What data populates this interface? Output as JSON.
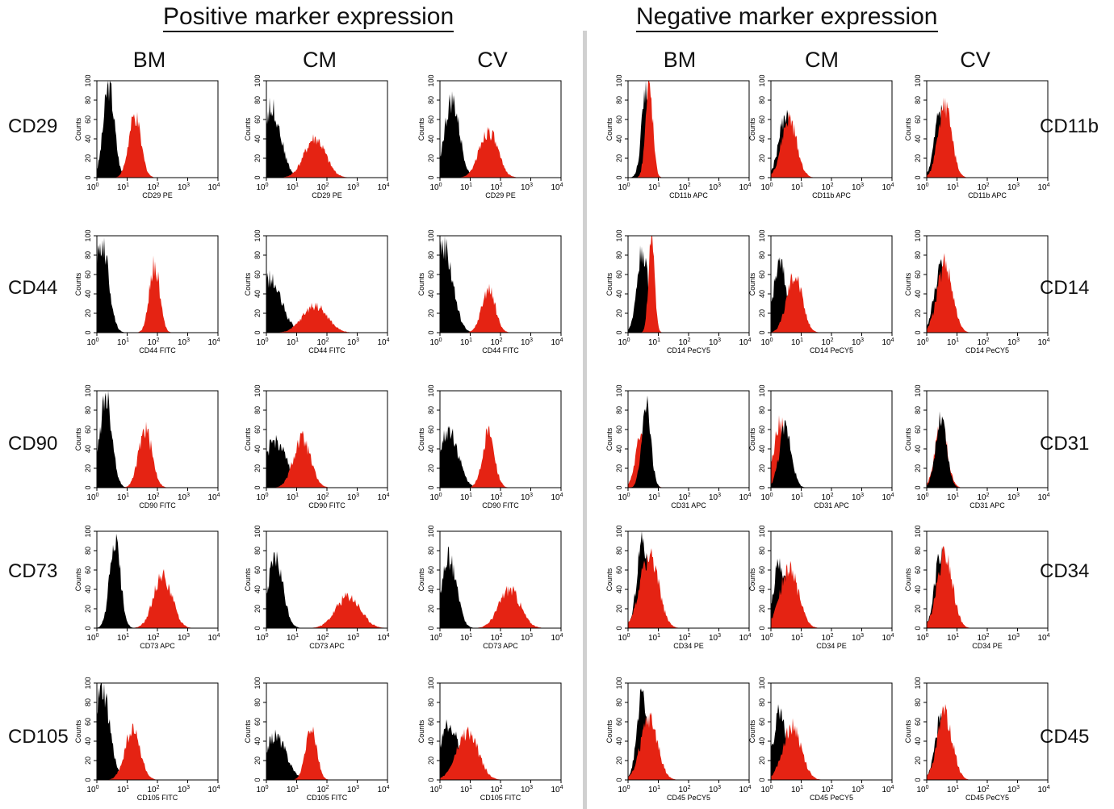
{
  "title_positive": "Positive marker expression",
  "title_negative": "Negative marker expression",
  "columns_positive": [
    "BM",
    "CM",
    "CV"
  ],
  "columns_negative": [
    "BM",
    "CM",
    "CV"
  ],
  "rows_positive": [
    "CD29",
    "CD44",
    "CD90",
    "CD73",
    "CD105"
  ],
  "rows_negative": [
    "CD11b",
    "CD14",
    "CD31",
    "CD34",
    "CD45"
  ],
  "colors": {
    "control": "#000000",
    "marker": "#e52313",
    "divider": "#d0d0d0"
  },
  "chart_data": [
    {
      "type": "area",
      "id": "pos-CD29-BM",
      "xlabel": "CD29 PE",
      "ylabel": "Counts",
      "xscale": "log",
      "xlim": [
        1,
        10000
      ],
      "ylim": [
        0,
        100
      ],
      "series": [
        {
          "role": "control",
          "peak_x": 2.5,
          "peak_y": 95,
          "width": 0.18
        },
        {
          "role": "marker",
          "peak_x": 18,
          "peak_y": 62,
          "width": 0.2
        }
      ]
    },
    {
      "type": "area",
      "id": "pos-CD29-CM",
      "xlabel": "CD29 PE",
      "ylabel": "Counts",
      "xscale": "log",
      "xlim": [
        1,
        10000
      ],
      "ylim": [
        0,
        100
      ],
      "series": [
        {
          "role": "control",
          "peak_x": 1.5,
          "peak_y": 72,
          "width": 0.3
        },
        {
          "role": "marker",
          "peak_x": 40,
          "peak_y": 40,
          "width": 0.35
        }
      ]
    },
    {
      "type": "area",
      "id": "pos-CD29-CV",
      "xlabel": "CD29 PE",
      "ylabel": "Counts",
      "xscale": "log",
      "xlim": [
        1,
        10000
      ],
      "ylim": [
        0,
        100
      ],
      "series": [
        {
          "role": "control",
          "peak_x": 2.5,
          "peak_y": 78,
          "width": 0.25
        },
        {
          "role": "marker",
          "peak_x": 40,
          "peak_y": 48,
          "width": 0.3
        }
      ]
    },
    {
      "type": "area",
      "id": "pos-CD44-BM",
      "xlabel": "CD44 FITC",
      "ylabel": "Counts",
      "xscale": "log",
      "xlim": [
        1,
        10000
      ],
      "ylim": [
        0,
        100
      ],
      "series": [
        {
          "role": "control",
          "peak_x": 1.5,
          "peak_y": 92,
          "width": 0.22
        },
        {
          "role": "marker",
          "peak_x": 80,
          "peak_y": 70,
          "width": 0.17
        }
      ]
    },
    {
      "type": "area",
      "id": "pos-CD44-CM",
      "xlabel": "CD44 FITC",
      "ylabel": "Counts",
      "xscale": "log",
      "xlim": [
        1,
        10000
      ],
      "ylim": [
        0,
        100
      ],
      "series": [
        {
          "role": "control",
          "peak_x": 1.2,
          "peak_y": 55,
          "width": 0.4
        },
        {
          "role": "marker",
          "peak_x": 40,
          "peak_y": 28,
          "width": 0.4
        }
      ]
    },
    {
      "type": "area",
      "id": "pos-CD44-CV",
      "xlabel": "CD44 FITC",
      "ylabel": "Counts",
      "xscale": "log",
      "xlim": [
        1,
        10000
      ],
      "ylim": [
        0,
        100
      ],
      "series": [
        {
          "role": "control",
          "peak_x": 1.3,
          "peak_y": 90,
          "width": 0.3
        },
        {
          "role": "marker",
          "peak_x": 40,
          "peak_y": 45,
          "width": 0.22
        }
      ]
    },
    {
      "type": "area",
      "id": "pos-CD90-BM",
      "xlabel": "CD90 FITC",
      "ylabel": "Counts",
      "xscale": "log",
      "xlim": [
        1,
        10000
      ],
      "ylim": [
        0,
        100
      ],
      "series": [
        {
          "role": "control",
          "peak_x": 2,
          "peak_y": 95,
          "width": 0.2
        },
        {
          "role": "marker",
          "peak_x": 40,
          "peak_y": 60,
          "width": 0.22
        }
      ]
    },
    {
      "type": "area",
      "id": "pos-CD90-CM",
      "xlabel": "CD90 FITC",
      "ylabel": "Counts",
      "xscale": "log",
      "xlim": [
        1,
        10000
      ],
      "ylim": [
        0,
        100
      ],
      "series": [
        {
          "role": "control",
          "peak_x": 2,
          "peak_y": 48,
          "width": 0.35
        },
        {
          "role": "marker",
          "peak_x": 15,
          "peak_y": 50,
          "width": 0.28
        }
      ]
    },
    {
      "type": "area",
      "id": "pos-CD90-CV",
      "xlabel": "CD90 FITC",
      "ylabel": "Counts",
      "xscale": "log",
      "xlim": [
        1,
        10000
      ],
      "ylim": [
        0,
        100
      ],
      "series": [
        {
          "role": "control",
          "peak_x": 2,
          "peak_y": 60,
          "width": 0.3
        },
        {
          "role": "marker",
          "peak_x": 40,
          "peak_y": 55,
          "width": 0.2
        }
      ]
    },
    {
      "type": "area",
      "id": "pos-CD73-BM",
      "xlabel": "CD73 APC",
      "ylabel": "Counts",
      "xscale": "log",
      "xlim": [
        1,
        10000
      ],
      "ylim": [
        0,
        100
      ],
      "series": [
        {
          "role": "control",
          "peak_x": 4,
          "peak_y": 88,
          "width": 0.18
        },
        {
          "role": "marker",
          "peak_x": 150,
          "peak_y": 55,
          "width": 0.3
        }
      ]
    },
    {
      "type": "area",
      "id": "pos-CD73-CM",
      "xlabel": "CD73 APC",
      "ylabel": "Counts",
      "xscale": "log",
      "xlim": [
        1,
        10000
      ],
      "ylim": [
        0,
        100
      ],
      "series": [
        {
          "role": "control",
          "peak_x": 2,
          "peak_y": 70,
          "width": 0.25
        },
        {
          "role": "marker",
          "peak_x": 500,
          "peak_y": 33,
          "width": 0.4
        }
      ]
    },
    {
      "type": "area",
      "id": "pos-CD73-CV",
      "xlabel": "CD73 APC",
      "ylabel": "Counts",
      "xscale": "log",
      "xlim": [
        1,
        10000
      ],
      "ylim": [
        0,
        100
      ],
      "series": [
        {
          "role": "control",
          "peak_x": 2,
          "peak_y": 72,
          "width": 0.25
        },
        {
          "role": "marker",
          "peak_x": 200,
          "peak_y": 40,
          "width": 0.35
        }
      ]
    },
    {
      "type": "area",
      "id": "pos-CD105-BM",
      "xlabel": "CD105 FITC",
      "ylabel": "Counts",
      "xscale": "log",
      "xlim": [
        1,
        10000
      ],
      "ylim": [
        0,
        100
      ],
      "series": [
        {
          "role": "control",
          "peak_x": 1.5,
          "peak_y": 95,
          "width": 0.25
        },
        {
          "role": "marker",
          "peak_x": 15,
          "peak_y": 52,
          "width": 0.25
        }
      ]
    },
    {
      "type": "area",
      "id": "pos-CD105-CM",
      "xlabel": "CD105 FITC",
      "ylabel": "Counts",
      "xscale": "log",
      "xlim": [
        1,
        10000
      ],
      "ylim": [
        0,
        100
      ],
      "series": [
        {
          "role": "control",
          "peak_x": 2,
          "peak_y": 45,
          "width": 0.35
        },
        {
          "role": "marker",
          "peak_x": 30,
          "peak_y": 55,
          "width": 0.18
        }
      ]
    },
    {
      "type": "area",
      "id": "pos-CD105-CV",
      "xlabel": "CD105 FITC",
      "ylabel": "Counts",
      "xscale": "log",
      "xlim": [
        1,
        10000
      ],
      "ylim": [
        0,
        100
      ],
      "series": [
        {
          "role": "control",
          "peak_x": 2,
          "peak_y": 55,
          "width": 0.35
        },
        {
          "role": "marker",
          "peak_x": 8,
          "peak_y": 50,
          "width": 0.35
        }
      ]
    },
    {
      "type": "area",
      "id": "neg-CD11b-BM",
      "xlabel": "CD11b APC",
      "ylabel": "Counts",
      "xscale": "log",
      "xlim": [
        1,
        10000
      ],
      "ylim": [
        0,
        100
      ],
      "series": [
        {
          "role": "control",
          "peak_x": 4,
          "peak_y": 88,
          "width": 0.15
        },
        {
          "role": "marker",
          "peak_x": 5,
          "peak_y": 95,
          "width": 0.12
        }
      ]
    },
    {
      "type": "area",
      "id": "neg-CD11b-CM",
      "xlabel": "CD11b APC",
      "ylabel": "Counts",
      "xscale": "log",
      "xlim": [
        1,
        10000
      ],
      "ylim": [
        0,
        100
      ],
      "series": [
        {
          "role": "control",
          "peak_x": 3,
          "peak_y": 62,
          "width": 0.22
        },
        {
          "role": "marker",
          "peak_x": 4,
          "peak_y": 60,
          "width": 0.25
        }
      ]
    },
    {
      "type": "area",
      "id": "neg-CD11b-CV",
      "xlabel": "CD11b APC",
      "ylabel": "Counts",
      "xscale": "log",
      "xlim": [
        1,
        10000
      ],
      "ylim": [
        0,
        100
      ],
      "series": [
        {
          "role": "control",
          "peak_x": 3,
          "peak_y": 72,
          "width": 0.2
        },
        {
          "role": "marker",
          "peak_x": 4,
          "peak_y": 75,
          "width": 0.22
        }
      ]
    },
    {
      "type": "area",
      "id": "neg-CD14-BM",
      "xlabel": "CD14 PeCY5",
      "ylabel": "Counts",
      "xscale": "log",
      "xlim": [
        1,
        10000
      ],
      "ylim": [
        0,
        100
      ],
      "series": [
        {
          "role": "control",
          "peak_x": 3,
          "peak_y": 85,
          "width": 0.18
        },
        {
          "role": "marker",
          "peak_x": 6,
          "peak_y": 95,
          "width": 0.1
        }
      ]
    },
    {
      "type": "area",
      "id": "neg-CD14-CM",
      "xlabel": "CD14 PeCY5",
      "ylabel": "Counts",
      "xscale": "log",
      "xlim": [
        1,
        10000
      ],
      "ylim": [
        0,
        100
      ],
      "series": [
        {
          "role": "control",
          "peak_x": 2,
          "peak_y": 70,
          "width": 0.22
        },
        {
          "role": "marker",
          "peak_x": 6,
          "peak_y": 62,
          "width": 0.25
        }
      ]
    },
    {
      "type": "area",
      "id": "neg-CD14-CV",
      "xlabel": "CD14 PeCY5",
      "ylabel": "Counts",
      "xscale": "log",
      "xlim": [
        1,
        10000
      ],
      "ylim": [
        0,
        100
      ],
      "series": [
        {
          "role": "control",
          "peak_x": 3,
          "peak_y": 68,
          "width": 0.22
        },
        {
          "role": "marker",
          "peak_x": 4,
          "peak_y": 70,
          "width": 0.25
        }
      ]
    },
    {
      "type": "area",
      "id": "neg-CD31-BM",
      "xlabel": "CD31 APC",
      "ylabel": "Counts",
      "xscale": "log",
      "xlim": [
        1,
        10000
      ],
      "ylim": [
        0,
        100
      ],
      "series": [
        {
          "role": "marker",
          "peak_x": 3,
          "peak_y": 60,
          "width": 0.2
        },
        {
          "role": "control",
          "peak_x": 4,
          "peak_y": 85,
          "width": 0.15
        }
      ]
    },
    {
      "type": "area",
      "id": "neg-CD31-CM",
      "xlabel": "CD31 APC",
      "ylabel": "Counts",
      "xscale": "log",
      "xlim": [
        1,
        10000
      ],
      "ylim": [
        0,
        100
      ],
      "series": [
        {
          "role": "marker",
          "peak_x": 2,
          "peak_y": 65,
          "width": 0.22
        },
        {
          "role": "control",
          "peak_x": 3,
          "peak_y": 62,
          "width": 0.2
        }
      ]
    },
    {
      "type": "area",
      "id": "neg-CD31-CV",
      "xlabel": "CD31 APC",
      "ylabel": "Counts",
      "xscale": "log",
      "xlim": [
        1,
        10000
      ],
      "ylim": [
        0,
        100
      ],
      "series": [
        {
          "role": "marker",
          "peak_x": 3,
          "peak_y": 68,
          "width": 0.2
        },
        {
          "role": "control",
          "peak_x": 3,
          "peak_y": 70,
          "width": 0.18
        }
      ]
    },
    {
      "type": "area",
      "id": "neg-CD34-BM",
      "xlabel": "CD34 PE",
      "ylabel": "Counts",
      "xscale": "log",
      "xlim": [
        1,
        10000
      ],
      "ylim": [
        0,
        100
      ],
      "series": [
        {
          "role": "control",
          "peak_x": 3,
          "peak_y": 90,
          "width": 0.18
        },
        {
          "role": "marker",
          "peak_x": 5,
          "peak_y": 75,
          "width": 0.3
        }
      ]
    },
    {
      "type": "area",
      "id": "neg-CD34-CM",
      "xlabel": "CD34 PE",
      "ylabel": "Counts",
      "xscale": "log",
      "xlim": [
        1,
        10000
      ],
      "ylim": [
        0,
        100
      ],
      "series": [
        {
          "role": "control",
          "peak_x": 2,
          "peak_y": 68,
          "width": 0.22
        },
        {
          "role": "marker",
          "peak_x": 4,
          "peak_y": 62,
          "width": 0.3
        }
      ]
    },
    {
      "type": "area",
      "id": "neg-CD34-CV",
      "xlabel": "CD34 PE",
      "ylabel": "Counts",
      "xscale": "log",
      "xlim": [
        1,
        10000
      ],
      "ylim": [
        0,
        100
      ],
      "series": [
        {
          "role": "control",
          "peak_x": 3,
          "peak_y": 80,
          "width": 0.2
        },
        {
          "role": "marker",
          "peak_x": 4,
          "peak_y": 78,
          "width": 0.25
        }
      ]
    },
    {
      "type": "area",
      "id": "neg-CD45-BM",
      "xlabel": "CD45 PeCY5",
      "ylabel": "Counts",
      "xscale": "log",
      "xlim": [
        1,
        10000
      ],
      "ylim": [
        0,
        100
      ],
      "series": [
        {
          "role": "control",
          "peak_x": 3,
          "peak_y": 88,
          "width": 0.18
        },
        {
          "role": "marker",
          "peak_x": 5,
          "peak_y": 62,
          "width": 0.28
        }
      ]
    },
    {
      "type": "area",
      "id": "neg-CD45-CM",
      "xlabel": "CD45 PeCY5",
      "ylabel": "Counts",
      "xscale": "log",
      "xlim": [
        1,
        10000
      ],
      "ylim": [
        0,
        100
      ],
      "series": [
        {
          "role": "control",
          "peak_x": 2,
          "peak_y": 72,
          "width": 0.22
        },
        {
          "role": "marker",
          "peak_x": 5,
          "peak_y": 55,
          "width": 0.3
        }
      ]
    },
    {
      "type": "area",
      "id": "neg-CD45-CV",
      "xlabel": "CD45 PeCY5",
      "ylabel": "Counts",
      "xscale": "log",
      "xlim": [
        1,
        10000
      ],
      "ylim": [
        0,
        100
      ],
      "series": [
        {
          "role": "control",
          "peak_x": 3,
          "peak_y": 65,
          "width": 0.2
        },
        {
          "role": "marker",
          "peak_x": 4,
          "peak_y": 68,
          "width": 0.25
        }
      ]
    }
  ]
}
